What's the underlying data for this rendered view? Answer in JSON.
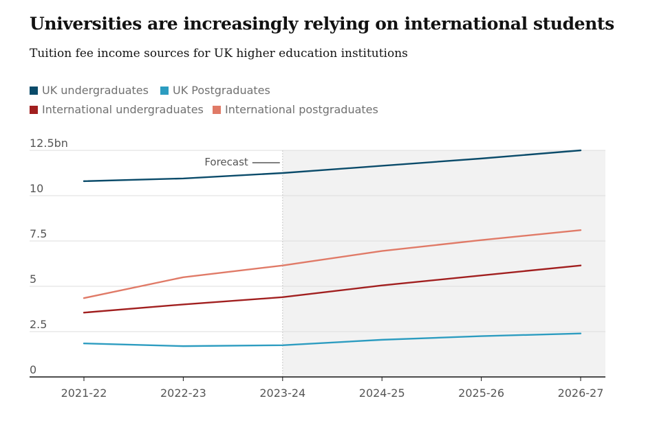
{
  "chart_data": {
    "type": "line",
    "title": "Universities are increasingly relying on international students",
    "subtitle": "Tuition fee income sources for UK higher education institutions",
    "categories": [
      "2021-22",
      "2022-23",
      "2023-24",
      "2024-25",
      "2025-26",
      "2026-27"
    ],
    "y_ticks": [
      "0",
      "2.5",
      "5",
      "7.5",
      "10",
      "12.5bn"
    ],
    "ylim": [
      0,
      12.5
    ],
    "grid": true,
    "legend_placement": "top-left",
    "forecast": {
      "label": "Forecast",
      "start_category": "2023-24",
      "end_category": "2026-27",
      "shade_color": "#f2f2f2"
    },
    "series": [
      {
        "name": "UK undergraduates",
        "color": "#0a4b6a",
        "values": [
          10.8,
          10.95,
          11.25,
          11.65,
          12.05,
          12.5
        ]
      },
      {
        "name": "UK Postgraduates",
        "color": "#2c9cc0",
        "values": [
          1.85,
          1.7,
          1.75,
          2.05,
          2.25,
          2.4
        ]
      },
      {
        "name": "International undergraduates",
        "color": "#a11f1f",
        "values": [
          3.55,
          4.0,
          4.4,
          5.05,
          5.6,
          6.15
        ]
      },
      {
        "name": "International postgraduates",
        "color": "#e07a67",
        "values": [
          4.35,
          5.5,
          6.15,
          6.95,
          7.55,
          8.1
        ]
      }
    ]
  }
}
